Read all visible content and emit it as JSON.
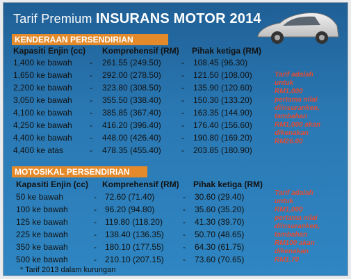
{
  "title": {
    "prefix": "Tarif Premium",
    "bold": "INSURANS MOTOR 2014"
  },
  "car_section": {
    "band": "KENDERAAN PERSENDIRIAN",
    "headers": {
      "capacity": "Kapasiti Enjin (cc)",
      "comprehensive": "Komprehensif (RM)",
      "third_party": "Pihak ketiga (RM)"
    },
    "rows": [
      {
        "capacity": "1,400 ke bawah",
        "comprehensive": "261.55 (249.50)",
        "third_party": "108.45 (96.30)"
      },
      {
        "capacity": "1,650 ke bawah",
        "comprehensive": "292.00 (278.50)",
        "third_party": "121.50 (108.00)"
      },
      {
        "capacity": "2,200 ke bawah",
        "comprehensive": "323.80 (308.50)",
        "third_party": "135.90 (120.60)"
      },
      {
        "capacity": "3,050 ke bawah",
        "comprehensive": "355.50 (338.40)",
        "third_party": "150.30 (133.20)"
      },
      {
        "capacity": "4,100 ke bawah",
        "comprehensive": "385.85 (367.40)",
        "third_party": "163.35 (144.90)"
      },
      {
        "capacity": "4,250 ke bawah",
        "comprehensive": "416.20 (396.40)",
        "third_party": "176.40 (156.60)"
      },
      {
        "capacity": "4,400 ke bawah",
        "comprehensive": "448.00 (426.40)",
        "third_party": "190.80 (169.20)"
      },
      {
        "capacity": "4,400 ke atas",
        "comprehensive": "478.35 (455.40)",
        "third_party": "203.85 (180.90)"
      }
    ],
    "note": [
      "Tarif adalah",
      "untuk",
      "RM1,000",
      "pertama nilai",
      "diinsuranken,",
      "tambahan",
      "RM1,000 akan",
      "dikenakan",
      "RM26.00"
    ]
  },
  "motorcycle_section": {
    "band": "MOTOSIKAL PERSENDIRIAN",
    "headers": {
      "capacity": "Kapasiti Enjin (cc)",
      "comprehensive": "Komprehensif (RM)",
      "third_party": "Pihak ketiga (RM)"
    },
    "rows": [
      {
        "capacity": "50 ke bawah",
        "comprehensive": "72.60 (71.40)",
        "third_party": "30.60 (29.40)"
      },
      {
        "capacity": "100 ke bawah",
        "comprehensive": "96.20 (94.80)",
        "third_party": "35.60 (35.20)"
      },
      {
        "capacity": "125 ke bawah",
        "comprehensive": "119.80 (118.20)",
        "third_party": "41.30 (39.70)"
      },
      {
        "capacity": "225 ke bawah",
        "comprehensive": "138.40 (136.35)",
        "third_party": "50.70 (48.65)"
      },
      {
        "capacity": "350 ke bawah",
        "comprehensive": "180.10 (177.55)",
        "third_party": "64.30 (61.75)"
      },
      {
        "capacity": "500 ke bawah",
        "comprehensive": "210.10 (207.15)",
        "third_party": "73.60 (70.65)"
      }
    ],
    "note": [
      "Tarif adalah",
      "untuk",
      "RM1,000",
      "pertama nilai",
      "diinsuranken,",
      "tambahan",
      "RM100 akan",
      "dikenakan",
      "RM1.70"
    ]
  },
  "footnote": "* Tarif 2013 dalam kurungan",
  "colors": {
    "panel": "#2a78b3",
    "band": "#e58a2a",
    "note": "#e24d35",
    "text": "#111111"
  },
  "image": {
    "subject": "car-illustration"
  }
}
